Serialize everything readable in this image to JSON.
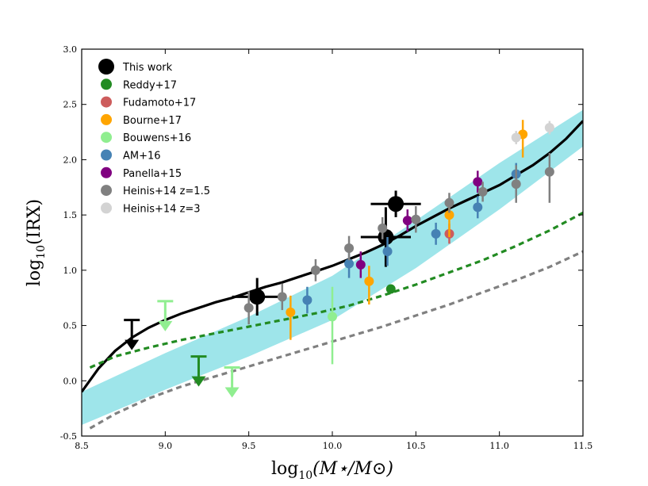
{
  "chart_data": {
    "type": "scatter",
    "xlabel_main": "log",
    "xlabel_sub": "10",
    "xlabel_rest": "(M⋆/M⊙)",
    "ylabel_main": "log",
    "ylabel_sub": "10",
    "ylabel_rest": "(IRX)",
    "xlim": [
      8.5,
      11.5
    ],
    "ylim": [
      -0.5,
      3.0
    ],
    "xticks": [
      "8.5",
      "9.0",
      "9.5",
      "10.0",
      "10.5",
      "11.0",
      "11.5"
    ],
    "yticks": [
      "-0.5",
      "0.0",
      "0.5",
      "1.0",
      "1.5",
      "2.0",
      "2.5",
      "3.0"
    ],
    "legend": [
      {
        "label": "This work",
        "color": "#000000"
      },
      {
        "label": "Reddy+17",
        "color": "#228b22"
      },
      {
        "label": "Fudamoto+17",
        "color": "#cd5c5c"
      },
      {
        "label": "Bourne+17",
        "color": "#ffa500"
      },
      {
        "label": "Bouwens+16",
        "color": "#90ee90"
      },
      {
        "label": "AM+16",
        "color": "#4682b4"
      },
      {
        "label": "Panella+15",
        "color": "#800080"
      },
      {
        "label": "Heinis+14 z=1.5",
        "color": "#808080"
      },
      {
        "label": "Heinis+14 z=3",
        "color": "#d3d3d3"
      }
    ],
    "band": {
      "color": "#9ee5ea",
      "lower": [
        [
          8.5,
          -0.4
        ],
        [
          9.0,
          -0.08
        ],
        [
          9.5,
          0.22
        ],
        [
          10.0,
          0.55
        ],
        [
          10.5,
          1.02
        ],
        [
          11.0,
          1.55
        ],
        [
          11.5,
          2.12
        ]
      ],
      "upper": [
        [
          8.5,
          -0.1
        ],
        [
          9.0,
          0.25
        ],
        [
          9.5,
          0.58
        ],
        [
          10.0,
          0.95
        ],
        [
          10.5,
          1.45
        ],
        [
          11.0,
          1.97
        ],
        [
          11.5,
          2.45
        ]
      ]
    },
    "curves": [
      {
        "name": "solid-fit",
        "color": "#000000",
        "dash": "",
        "points": [
          [
            8.5,
            -0.1
          ],
          [
            8.6,
            0.11
          ],
          [
            8.7,
            0.27
          ],
          [
            8.8,
            0.39
          ],
          [
            8.9,
            0.48
          ],
          [
            9.0,
            0.55
          ],
          [
            9.1,
            0.61
          ],
          [
            9.2,
            0.66
          ],
          [
            9.3,
            0.71
          ],
          [
            9.4,
            0.75
          ],
          [
            9.5,
            0.8
          ],
          [
            9.6,
            0.85
          ],
          [
            9.7,
            0.89
          ],
          [
            9.8,
            0.94
          ],
          [
            9.9,
            0.99
          ],
          [
            10.0,
            1.04
          ],
          [
            10.1,
            1.1
          ],
          [
            10.2,
            1.16
          ],
          [
            10.3,
            1.23
          ],
          [
            10.4,
            1.31
          ],
          [
            10.5,
            1.4
          ],
          [
            10.6,
            1.48
          ],
          [
            10.7,
            1.56
          ],
          [
            10.8,
            1.63
          ],
          [
            10.9,
            1.7
          ],
          [
            11.0,
            1.77
          ],
          [
            11.1,
            1.86
          ],
          [
            11.2,
            1.95
          ],
          [
            11.3,
            2.06
          ],
          [
            11.4,
            2.19
          ],
          [
            11.5,
            2.35
          ]
        ]
      },
      {
        "name": "green-dashed",
        "color": "#228b22",
        "dash": "7,5",
        "points": [
          [
            8.55,
            0.12
          ],
          [
            8.7,
            0.22
          ],
          [
            8.9,
            0.3
          ],
          [
            9.1,
            0.37
          ],
          [
            9.3,
            0.43
          ],
          [
            9.5,
            0.49
          ],
          [
            9.7,
            0.55
          ],
          [
            9.9,
            0.61
          ],
          [
            10.1,
            0.68
          ],
          [
            10.3,
            0.77
          ],
          [
            10.5,
            0.87
          ],
          [
            10.7,
            0.98
          ],
          [
            10.9,
            1.09
          ],
          [
            11.1,
            1.22
          ],
          [
            11.3,
            1.36
          ],
          [
            11.5,
            1.52
          ]
        ]
      },
      {
        "name": "gray-dashed",
        "color": "#808080",
        "dash": "7,5",
        "points": [
          [
            8.55,
            -0.43
          ],
          [
            8.7,
            -0.3
          ],
          [
            8.9,
            -0.16
          ],
          [
            9.1,
            -0.05
          ],
          [
            9.3,
            0.04
          ],
          [
            9.5,
            0.13
          ],
          [
            9.7,
            0.22
          ],
          [
            9.9,
            0.31
          ],
          [
            10.1,
            0.4
          ],
          [
            10.3,
            0.49
          ],
          [
            10.5,
            0.59
          ],
          [
            10.7,
            0.69
          ],
          [
            10.9,
            0.8
          ],
          [
            11.1,
            0.91
          ],
          [
            11.3,
            1.03
          ],
          [
            11.5,
            1.17
          ]
        ]
      }
    ],
    "series": [
      {
        "name": "This work",
        "color": "#000000",
        "size": 10,
        "xerr": 0.15,
        "points": [
          [
            9.55,
            0.76,
            0.17,
            0.17
          ],
          [
            10.32,
            1.3,
            0.27,
            0.27
          ],
          [
            10.38,
            1.6,
            0.12,
            0.12
          ]
        ]
      },
      {
        "name": "Reddy+17",
        "color": "#228b22",
        "size": 6,
        "xerr": 0,
        "points": [
          [
            10.35,
            0.83,
            0,
            0
          ]
        ]
      },
      {
        "name": "Fudamoto+17",
        "color": "#cd5c5c",
        "size": 6,
        "xerr": 0,
        "points": [
          [
            10.7,
            1.33,
            0.09,
            0.09
          ]
        ]
      },
      {
        "name": "Bourne+17",
        "color": "#ffa500",
        "size": 6,
        "xerr": 0,
        "points": [
          [
            9.75,
            0.62,
            0.25,
            0.15
          ],
          [
            10.22,
            0.9,
            0.21,
            0.14
          ],
          [
            10.7,
            1.5,
            0.2,
            0.15
          ],
          [
            11.14,
            2.23,
            0.21,
            0.13
          ]
        ]
      },
      {
        "name": "Bouwens+16",
        "color": "#90ee90",
        "size": 6,
        "xerr": 0,
        "points": [
          [
            10.0,
            0.58,
            0.43,
            0.27
          ]
        ]
      },
      {
        "name": "AM+16",
        "color": "#4682b4",
        "size": 6,
        "xerr": 0,
        "points": [
          [
            9.85,
            0.73,
            0.12,
            0.12
          ],
          [
            10.1,
            1.06,
            0.13,
            0.13
          ],
          [
            10.33,
            1.17,
            0.13,
            0.13
          ],
          [
            10.62,
            1.33,
            0.1,
            0.1
          ],
          [
            10.87,
            1.57,
            0.1,
            0.1
          ],
          [
            11.1,
            1.87,
            0.1,
            0.1
          ]
        ]
      },
      {
        "name": "Panella+15",
        "color": "#800080",
        "size": 6,
        "xerr": 0,
        "points": [
          [
            10.17,
            1.05,
            0.12,
            0.12
          ],
          [
            10.45,
            1.45,
            0.1,
            0.1
          ],
          [
            10.87,
            1.8,
            0.1,
            0.1
          ]
        ]
      },
      {
        "name": "Heinis+14 z=1.5",
        "color": "#808080",
        "size": 6,
        "xerr": 0,
        "points": [
          [
            9.5,
            0.66,
            0.15,
            0.15
          ],
          [
            9.7,
            0.76,
            0.12,
            0.12
          ],
          [
            9.9,
            1.0,
            0.1,
            0.1
          ],
          [
            10.1,
            1.2,
            0.11,
            0.11
          ],
          [
            10.3,
            1.38,
            0.1,
            0.1
          ],
          [
            10.5,
            1.46,
            0.12,
            0.12
          ],
          [
            10.7,
            1.61,
            0.09,
            0.09
          ],
          [
            10.9,
            1.71,
            0.09,
            0.09
          ],
          [
            11.1,
            1.78,
            0.17,
            0.17
          ],
          [
            11.3,
            1.89,
            0.28,
            0.17
          ]
        ]
      },
      {
        "name": "Heinis+14 z=3",
        "color": "#d3d3d3",
        "size": 6,
        "xerr": 0,
        "points": [
          [
            11.1,
            2.2,
            0.06,
            0.06
          ],
          [
            11.3,
            2.29,
            0.06,
            0.06
          ]
        ]
      }
    ],
    "upper_limits": [
      {
        "name": "This work",
        "color": "#000000",
        "points": [
          [
            8.8,
            0.55
          ]
        ]
      },
      {
        "name": "Bouwens+16",
        "color": "#90ee90",
        "points": [
          [
            9.0,
            0.72
          ],
          [
            9.4,
            0.12
          ]
        ]
      },
      {
        "name": "Reddy+17",
        "color": "#228b22",
        "points": [
          [
            9.2,
            0.22
          ]
        ]
      }
    ]
  }
}
